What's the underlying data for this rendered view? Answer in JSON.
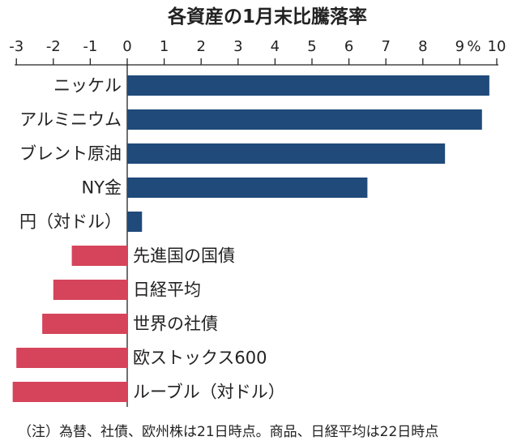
{
  "chart_data": {
    "type": "bar",
    "orientation": "horizontal",
    "title": "各資産の1月末比騰落率",
    "xlim": [
      -3,
      10
    ],
    "x_ticks": [
      "-3",
      "-2",
      "-1",
      "0",
      "1",
      "2",
      "3",
      "4",
      "5",
      "6",
      "7",
      "8",
      "9",
      "10"
    ],
    "percent_label": "%",
    "categories": [
      "ニッケル",
      "アルミニウム",
      "ブレント原油",
      "NY金",
      "円（対ドル）",
      "先進国の国債",
      "日経平均",
      "世界の社債",
      "欧ストックス600",
      "ルーブル（対ドル）"
    ],
    "values": [
      9.8,
      9.6,
      8.6,
      6.5,
      0.4,
      -1.5,
      -2.0,
      -2.3,
      -3.0,
      -3.1
    ],
    "colors": {
      "positive": "#1f4a7a",
      "negative": "#d5445a"
    },
    "note": "（注）為替、社債、欧州株は21日時点。商品、日経平均は22日時点"
  }
}
